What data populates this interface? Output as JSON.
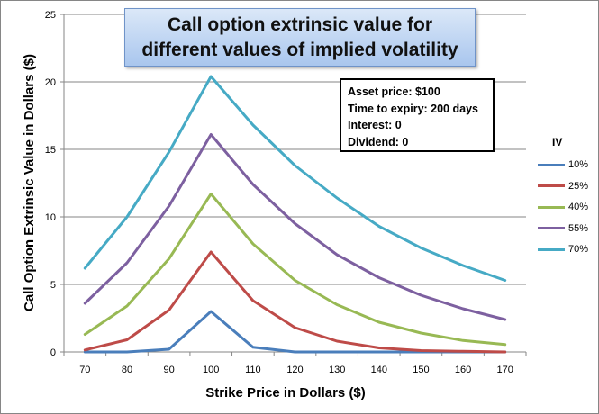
{
  "chart_data": {
    "type": "line",
    "title": "Call option extrinsic value for different values of implied volatility",
    "xlabel": "Strike Price in Dollars ($)",
    "ylabel": "Call Option Extrinsic Value in Dollars ($)",
    "categories": [
      "70",
      "80",
      "90",
      "100",
      "110",
      "120",
      "130",
      "140",
      "150",
      "160",
      "170"
    ],
    "ylim": [
      0,
      25
    ],
    "yticks": [
      "0",
      "5",
      "10",
      "15",
      "20",
      "25"
    ],
    "grid": "horizontal",
    "legend_placement": "right",
    "legend_title": "IV",
    "series": [
      {
        "name": "10%",
        "color": "#4a7ebb",
        "values": [
          0,
          0,
          0.2,
          3.0,
          0.35,
          0,
          0,
          0,
          0,
          0,
          0
        ]
      },
      {
        "name": "25%",
        "color": "#be4b48",
        "values": [
          0.15,
          0.9,
          3.1,
          7.4,
          3.8,
          1.8,
          0.8,
          0.3,
          0.1,
          0.05,
          0
        ]
      },
      {
        "name": "40%",
        "color": "#98b954",
        "values": [
          1.3,
          3.4,
          6.9,
          11.7,
          8.0,
          5.3,
          3.5,
          2.2,
          1.4,
          0.85,
          0.55
        ]
      },
      {
        "name": "55%",
        "color": "#7d60a0",
        "values": [
          3.6,
          6.6,
          10.8,
          16.1,
          12.4,
          9.5,
          7.2,
          5.5,
          4.2,
          3.2,
          2.4
        ]
      },
      {
        "name": "70%",
        "color": "#46aac5",
        "values": [
          6.2,
          10.0,
          14.8,
          20.4,
          16.8,
          13.8,
          11.4,
          9.3,
          7.7,
          6.4,
          5.3
        ]
      }
    ],
    "annotation": {
      "asset_price": "Asset price: $100",
      "time_to_expiry": "Time to expiry: 200 days",
      "interest": "Interest: 0",
      "dividend": "Dividend: 0"
    }
  }
}
